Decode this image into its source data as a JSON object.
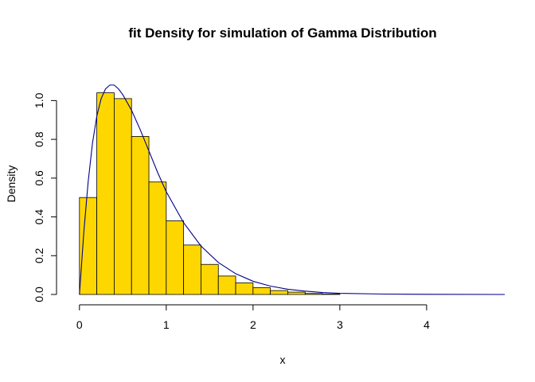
{
  "chart_data": {
    "type": "bar",
    "title": "fit Density for simulation of Gamma Distribution",
    "xlabel": "x",
    "ylabel": "Density",
    "xlim": [
      -0.2,
      4.9
    ],
    "ylim": [
      0,
      1.1
    ],
    "x_ticks": [
      0,
      1,
      2,
      3,
      4
    ],
    "x_tick_labels": [
      "0",
      "1",
      "2",
      "3",
      "4"
    ],
    "y_ticks": [
      0,
      0.2,
      0.4,
      0.6,
      0.8,
      1.0
    ],
    "y_tick_labels": [
      "0.0",
      "0.2",
      "0.4",
      "0.6",
      "0.8",
      "1.0"
    ],
    "grid": false,
    "histogram": {
      "bin_edges": [
        0,
        0.2,
        0.4,
        0.6,
        0.8,
        1.0,
        1.2,
        1.4,
        1.6,
        1.8,
        2.0,
        2.2,
        2.4,
        2.6,
        2.8,
        3.0
      ],
      "densities": [
        0.5,
        1.04,
        1.01,
        0.815,
        0.58,
        0.38,
        0.255,
        0.155,
        0.095,
        0.06,
        0.035,
        0.02,
        0.012,
        0.005,
        0.002
      ],
      "fill_color": "#FFD700",
      "edge_color": "#000000"
    },
    "density_curve": {
      "x": [
        0,
        0.05,
        0.1,
        0.15,
        0.2,
        0.25,
        0.3,
        0.35,
        0.4,
        0.45,
        0.5,
        0.6,
        0.7,
        0.8,
        0.9,
        1.0,
        1.2,
        1.4,
        1.6,
        1.8,
        2.0,
        2.2,
        2.4,
        2.6,
        2.8,
        3.0,
        3.5,
        4.0,
        4.9
      ],
      "y": [
        0.0,
        0.32,
        0.58,
        0.78,
        0.92,
        1.01,
        1.06,
        1.08,
        1.08,
        1.06,
        1.03,
        0.95,
        0.85,
        0.74,
        0.63,
        0.53,
        0.37,
        0.25,
        0.165,
        0.107,
        0.068,
        0.043,
        0.027,
        0.017,
        0.01,
        0.006,
        0.002,
        0.0006,
        0.0
      ],
      "color": "#00008B"
    }
  }
}
